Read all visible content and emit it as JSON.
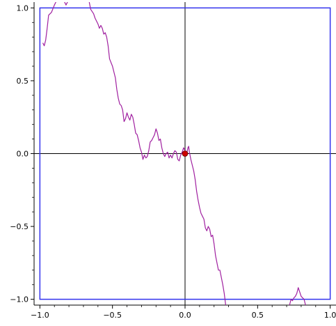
{
  "chart_data": {
    "type": "line",
    "title": "",
    "xlabel": "",
    "ylabel": "",
    "xlim": [
      -1.04,
      1.04
    ],
    "ylim": [
      -1.04,
      1.04
    ],
    "grid": false,
    "x_ticks": [
      {
        "value": -1.0,
        "label": "−1.0"
      },
      {
        "value": -0.5,
        "label": "−0.5"
      },
      {
        "value": 0.0,
        "label": "0.0"
      },
      {
        "value": 0.5,
        "label": "0.5"
      },
      {
        "value": 1.0,
        "label": "1.0"
      }
    ],
    "y_ticks": [
      {
        "value": 1.0,
        "label": "1.0"
      },
      {
        "value": 0.5,
        "label": "0.5"
      },
      {
        "value": 0.0,
        "label": "0.0"
      },
      {
        "value": -0.5,
        "label": "−0.5"
      },
      {
        "value": -1.0,
        "label": "−1.0"
      }
    ],
    "reference_lines": {
      "x": 0.0,
      "y": 0.0,
      "color": "#000000"
    },
    "box": {
      "x": [
        -1.0,
        1.0
      ],
      "y": [
        -1.0,
        1.0
      ],
      "color": "#3333ee"
    },
    "marker": {
      "x": 0.0,
      "y": 0.0,
      "color": "#cc0000"
    },
    "series": [
      {
        "color": "#a020a0",
        "segments": [
          [
            [
              -0.98,
              0.76
            ],
            [
              -0.97,
              0.74
            ],
            [
              -0.96,
              0.78
            ],
            [
              -0.95,
              0.86
            ],
            [
              -0.94,
              0.95
            ],
            [
              -0.92,
              0.97
            ],
            [
              -0.9,
              1.02
            ],
            [
              -0.88,
              1.06
            ]
          ],
          [
            [
              -0.84,
              1.06
            ],
            [
              -0.83,
              1.04
            ],
            [
              -0.82,
              1.02
            ],
            [
              -0.81,
              1.04
            ],
            [
              -0.8,
              1.06
            ]
          ],
          [
            [
              -0.66,
              1.04
            ],
            [
              -0.65,
              0.99
            ],
            [
              -0.63,
              0.96
            ],
            [
              -0.62,
              0.93
            ],
            [
              -0.6,
              0.89
            ],
            [
              -0.59,
              0.86
            ],
            [
              -0.58,
              0.88
            ],
            [
              -0.57,
              0.86
            ],
            [
              -0.56,
              0.82
            ],
            [
              -0.55,
              0.83
            ],
            [
              -0.54,
              0.8
            ],
            [
              -0.53,
              0.74
            ],
            [
              -0.52,
              0.65
            ],
            [
              -0.5,
              0.6
            ],
            [
              -0.49,
              0.56
            ],
            [
              -0.48,
              0.52
            ],
            [
              -0.47,
              0.44
            ],
            [
              -0.46,
              0.38
            ],
            [
              -0.45,
              0.34
            ],
            [
              -0.44,
              0.33
            ],
            [
              -0.43,
              0.3
            ],
            [
              -0.42,
              0.22
            ],
            [
              -0.41,
              0.24
            ],
            [
              -0.4,
              0.28
            ],
            [
              -0.39,
              0.25
            ],
            [
              -0.38,
              0.23
            ],
            [
              -0.37,
              0.27
            ],
            [
              -0.36,
              0.25
            ],
            [
              -0.35,
              0.2
            ],
            [
              -0.34,
              0.14
            ],
            [
              -0.33,
              0.13
            ],
            [
              -0.32,
              0.09
            ],
            [
              -0.31,
              0.04
            ],
            [
              -0.3,
              0.01
            ],
            [
              -0.29,
              -0.04
            ],
            [
              -0.28,
              -0.01
            ],
            [
              -0.27,
              -0.03
            ],
            [
              -0.26,
              -0.02
            ],
            [
              -0.25,
              0.02
            ],
            [
              -0.24,
              0.08
            ],
            [
              -0.23,
              0.09
            ],
            [
              -0.22,
              0.11
            ],
            [
              -0.21,
              0.13
            ],
            [
              -0.2,
              0.17
            ],
            [
              -0.19,
              0.14
            ],
            [
              -0.18,
              0.09
            ],
            [
              -0.17,
              0.1
            ],
            [
              -0.16,
              0.04
            ],
            [
              -0.15,
              0.0
            ],
            [
              -0.14,
              -0.02
            ],
            [
              -0.13,
              0.0
            ],
            [
              -0.12,
              0.01
            ],
            [
              -0.11,
              -0.03
            ],
            [
              -0.1,
              -0.01
            ],
            [
              -0.09,
              -0.03
            ],
            [
              -0.08,
              0.0
            ],
            [
              -0.07,
              0.02
            ],
            [
              -0.06,
              0.01
            ],
            [
              -0.05,
              -0.04
            ],
            [
              -0.04,
              -0.05
            ],
            [
              -0.03,
              -0.01
            ],
            [
              -0.02,
              0.01
            ],
            [
              -0.01,
              0.04
            ],
            [
              0.0,
              0.02
            ],
            [
              0.01,
              -0.01
            ],
            [
              0.02,
              0.04
            ],
            [
              0.025,
              0.05
            ],
            [
              0.03,
              0.01
            ],
            [
              0.04,
              -0.04
            ],
            [
              0.05,
              -0.08
            ],
            [
              0.06,
              -0.12
            ],
            [
              0.07,
              -0.18
            ],
            [
              0.08,
              -0.26
            ],
            [
              0.09,
              -0.32
            ],
            [
              0.1,
              -0.37
            ],
            [
              0.11,
              -0.41
            ],
            [
              0.12,
              -0.43
            ],
            [
              0.13,
              -0.45
            ],
            [
              0.14,
              -0.51
            ],
            [
              0.15,
              -0.53
            ],
            [
              0.16,
              -0.5
            ],
            [
              0.17,
              -0.52
            ],
            [
              0.18,
              -0.57
            ],
            [
              0.19,
              -0.56
            ],
            [
              0.2,
              -0.62
            ],
            [
              0.21,
              -0.7
            ],
            [
              0.22,
              -0.75
            ],
            [
              0.23,
              -0.8
            ],
            [
              0.24,
              -0.8
            ],
            [
              0.25,
              -0.85
            ],
            [
              0.26,
              -0.9
            ],
            [
              0.27,
              -0.96
            ],
            [
              0.28,
              -1.04
            ]
          ],
          [
            [
              0.72,
              -1.04
            ],
            [
              0.73,
              -1.0
            ],
            [
              0.74,
              -1.01
            ],
            [
              0.75,
              -0.99
            ],
            [
              0.76,
              -0.98
            ],
            [
              0.77,
              -0.96
            ],
            [
              0.78,
              -0.92
            ],
            [
              0.79,
              -0.95
            ],
            [
              0.8,
              -0.98
            ],
            [
              0.81,
              -0.99
            ],
            [
              0.82,
              -1.0
            ],
            [
              0.83,
              -1.04
            ]
          ]
        ]
      }
    ]
  }
}
